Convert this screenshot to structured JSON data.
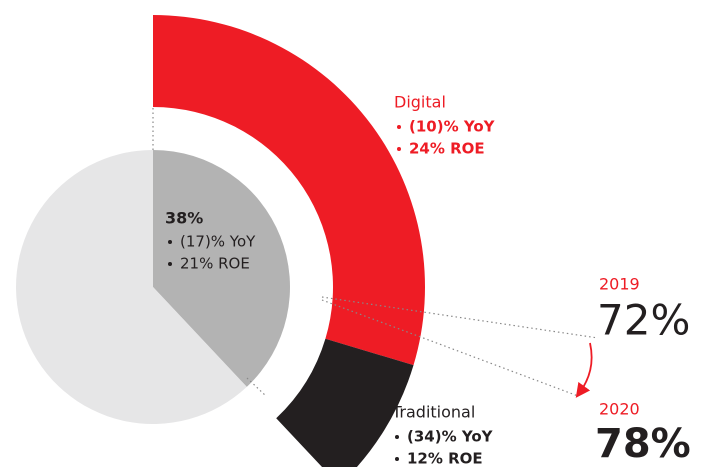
{
  "chart_data": {
    "type": "pie",
    "slices": [
      {
        "label": "38%",
        "value": 38,
        "color": "#b3b3b3",
        "notes": [
          "(17)% YoY",
          "21% ROE"
        ]
      },
      {
        "value": 62,
        "color": "#e6e6e7"
      }
    ],
    "breakdown": [
      {
        "name": "Digital",
        "value": 78,
        "color": "#ee1c25",
        "notes": [
          "(10)% YoY",
          "24% ROE"
        ]
      },
      {
        "name": "Traditional",
        "value": 22,
        "color": "#231f20",
        "notes": [
          "(34)% YoY",
          "12% ROE"
        ]
      }
    ],
    "comparison": [
      {
        "year": "2019",
        "value": 72,
        "label": "72%"
      },
      {
        "year": "2020",
        "value": 78,
        "label": "78%"
      }
    ]
  }
}
